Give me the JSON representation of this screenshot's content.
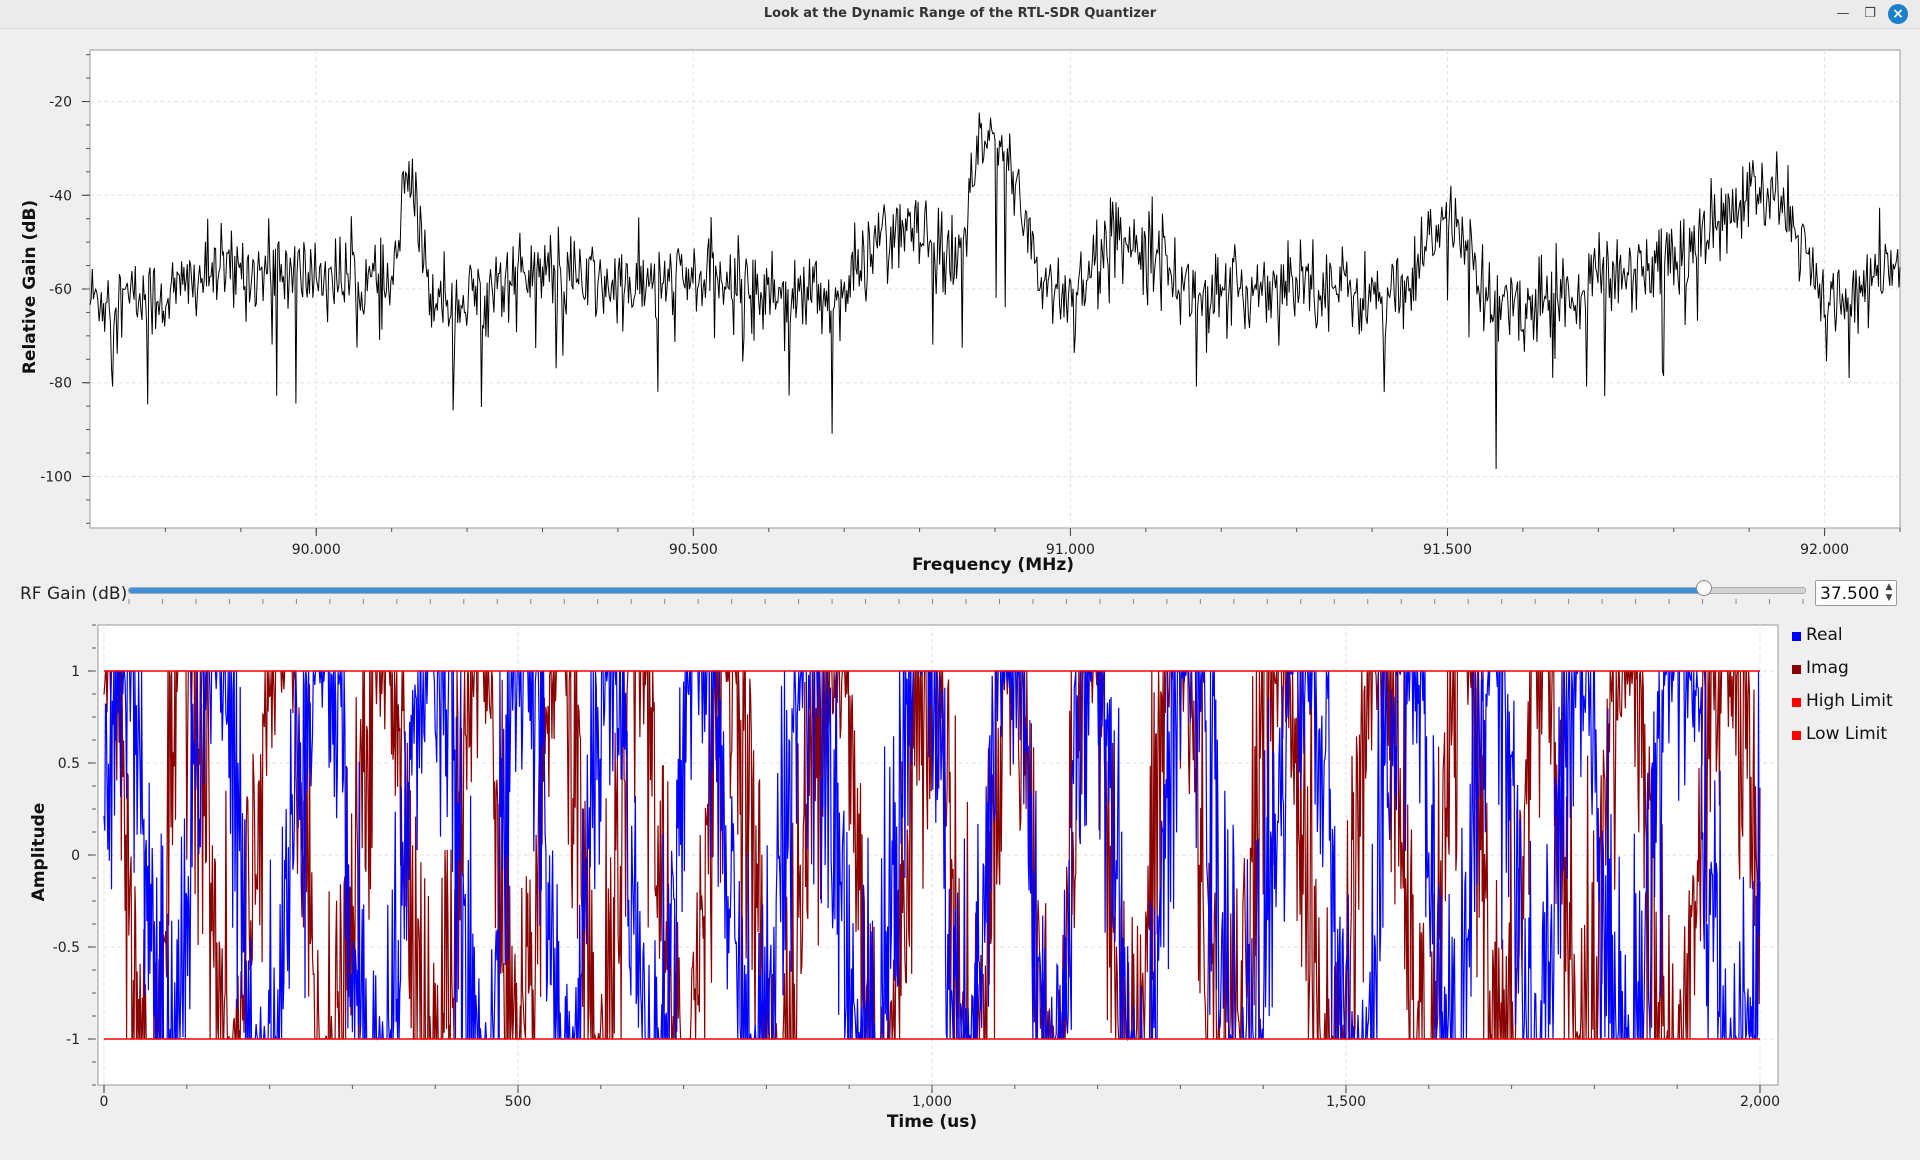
{
  "window": {
    "title": "Look at the Dynamic Range of the RTL-SDR Quantizer",
    "minimize_icon": "minimize-icon",
    "restore_icon": "restore-icon",
    "close_icon": "close-icon"
  },
  "colors": {
    "real": "#0000ff",
    "imag": "#8b0000",
    "limit": "#ff0000",
    "spectrum": "#000000",
    "slider_fill": "#3d8fd6"
  },
  "rf_gain": {
    "label": "RF Gain (dB)",
    "value": "37.500",
    "fraction": 0.94
  },
  "legend": [
    {
      "label": "Real"
    },
    {
      "label": "Imag"
    },
    {
      "label": "High Limit"
    },
    {
      "label": "Low Limit"
    }
  ],
  "chart_data": [
    {
      "type": "line",
      "xlabel": "Frequency (MHz)",
      "ylabel": "Relative Gain (dB)",
      "xlim": [
        89.7,
        92.1
      ],
      "ylim": [
        -111,
        -9
      ],
      "x_ticks": [
        "90.000",
        "90.500",
        "91.000",
        "91.500",
        "92.000"
      ],
      "y_ticks": [
        "-20",
        "-40",
        "-60",
        "-80",
        "-100"
      ],
      "grid": true,
      "series": [
        {
          "x": [
            89.7,
            89.8,
            89.85,
            89.9,
            90.0,
            90.05,
            90.1,
            90.11,
            90.12,
            90.15,
            90.2,
            90.25,
            90.3,
            90.4,
            90.5,
            90.6,
            90.7,
            90.75,
            90.8,
            90.85,
            90.88,
            90.9,
            90.93,
            90.96,
            91.0,
            91.05,
            91.1,
            91.15,
            91.2,
            91.3,
            91.4,
            91.45,
            91.48,
            91.5,
            91.52,
            91.55,
            91.6,
            91.7,
            91.8,
            91.85,
            91.9,
            91.95,
            91.97,
            92.0,
            92.05,
            92.1
          ],
          "y": [
            -62,
            -62,
            -57,
            -56,
            -57,
            -58,
            -60,
            -50,
            -34,
            -60,
            -63,
            -58,
            -56,
            -60,
            -58,
            -60,
            -62,
            -47,
            -49,
            -55,
            -30,
            -28,
            -38,
            -58,
            -62,
            -50,
            -48,
            -60,
            -62,
            -57,
            -62,
            -62,
            -48,
            -43,
            -48,
            -62,
            -64,
            -58,
            -53,
            -48,
            -40,
            -42,
            -50,
            -65,
            -60,
            -55
          ]
        }
      ]
    },
    {
      "type": "line",
      "xlabel": "Time (us)",
      "ylabel": "Amplitude",
      "xlim": [
        0,
        2000
      ],
      "ylim": [
        -1.25,
        1.25
      ],
      "x_ticks": [
        "0",
        "500",
        "1,000",
        "1,500",
        "2,000"
      ],
      "y_ticks": [
        "1",
        "0.5",
        "0",
        "-0.5",
        "-1"
      ],
      "grid": true,
      "series": [
        {
          "name": "Real",
          "description_values": "saturating oscillation between -1 and 1 over 0-2000 us"
        },
        {
          "name": "Imag",
          "description_values": "saturating oscillation between -1 and 1 over 0-2000 us"
        },
        {
          "name": "High Limit",
          "y": [
            1,
            1
          ],
          "x": [
            0,
            2000
          ]
        },
        {
          "name": "Low Limit",
          "y": [
            -1,
            -1
          ],
          "x": [
            0,
            2000
          ]
        }
      ]
    }
  ]
}
